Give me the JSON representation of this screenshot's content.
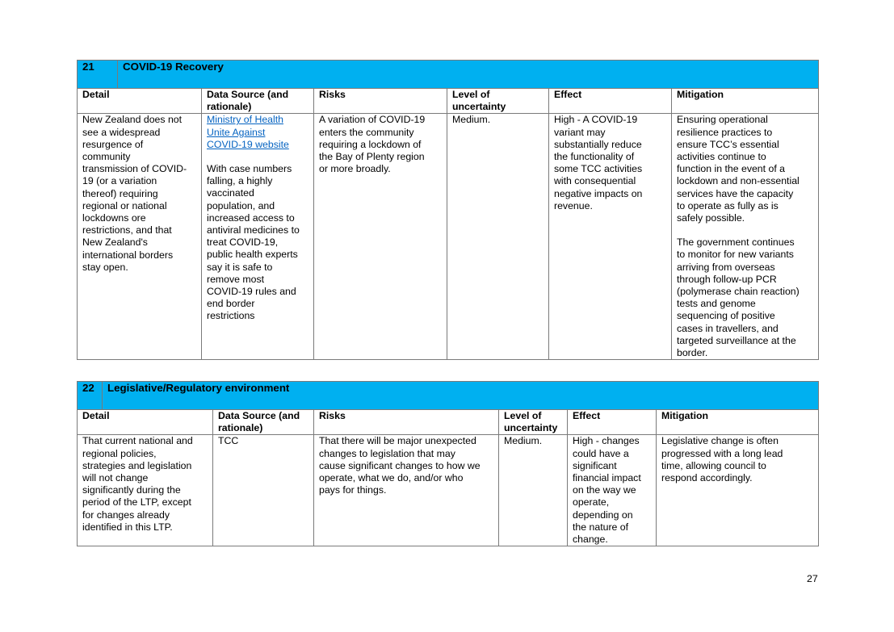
{
  "tables": [
    {
      "number": "21",
      "title": "COVID-19 Recovery",
      "headers": {
        "detail": "Detail",
        "source": "Data Source (and rationale)",
        "risks": "Risks",
        "uncertainty": "Level of uncertainty",
        "effect": "Effect",
        "mitigation": "Mitigation"
      },
      "detail": "New Zealand does not\nsee a widespread\nresurgence of\ncommunity\ntransmission of COVID-\n19 (or a variation\nthereof) requiring\nregional or national\nlockdowns ore\nrestrictions, and that\nNew Zealand's\ninternational borders\nstay open.",
      "source_link": "Ministry of Health\nUnite Against\nCOVID-19 website",
      "source_text": "With case numbers\nfalling, a highly\nvaccinated\npopulation, and\nincreased access to\nantiviral medicines to\ntreat COVID-19,\npublic health experts\nsay it is safe to\nremove most\nCOVID-19 rules and\nend border\nrestrictions",
      "risks": "A variation of COVID-19\nenters the community\nrequiring a lockdown of\nthe Bay of Plenty region\nor more broadly.",
      "uncertainty": "Medium.",
      "effect": "High - A COVID-19\nvariant may\nsubstantially reduce\nthe functionality of\nsome TCC activities\nwith consequential\nnegative impacts on\nrevenue.",
      "mitigation_1": "Ensuring operational\nresilience practices to\nensure TCC’s essential\nactivities continue to\nfunction in the event of a\nlockdown and non-essential\nservices have the capacity\nto operate as fully as is\nsafely possible.",
      "mitigation_2": "The government continues\nto monitor for new variants\narriving from overseas\nthrough follow-up PCR\n(polymerase chain reaction)\ntests and genome\nsequencing of positive\ncases in travellers, and\ntargeted surveillance at the\nborder."
    },
    {
      "number": "22",
      "title": "Legislative/Regulatory environment",
      "headers": {
        "detail": "Detail",
        "source": "Data Source (and rationale)",
        "risks": "Risks",
        "uncertainty": "Level of uncertainty",
        "effect": "Effect",
        "mitigation": "Mitigation"
      },
      "detail": "That current national and\nregional policies,\nstrategies and legislation\nwill not change\nsignificantly during the\nperiod of the LTP, except\nfor changes already\nidentified in this LTP.",
      "source_text": "TCC",
      "risks": "That there will be major unexpected\nchanges to legislation that may\ncause significant changes to how we\noperate, what we do, and/or who\npays for things.",
      "uncertainty": "Medium.",
      "effect": "High - changes\ncould have a\nsignificant\nfinancial impact\non the way we\noperate,\ndepending on\nthe nature of\nchange.",
      "mitigation_1": "Legislative change is often\nprogressed with a long lead\ntime, allowing council to\nrespond accordingly."
    }
  ],
  "page_number": "27"
}
